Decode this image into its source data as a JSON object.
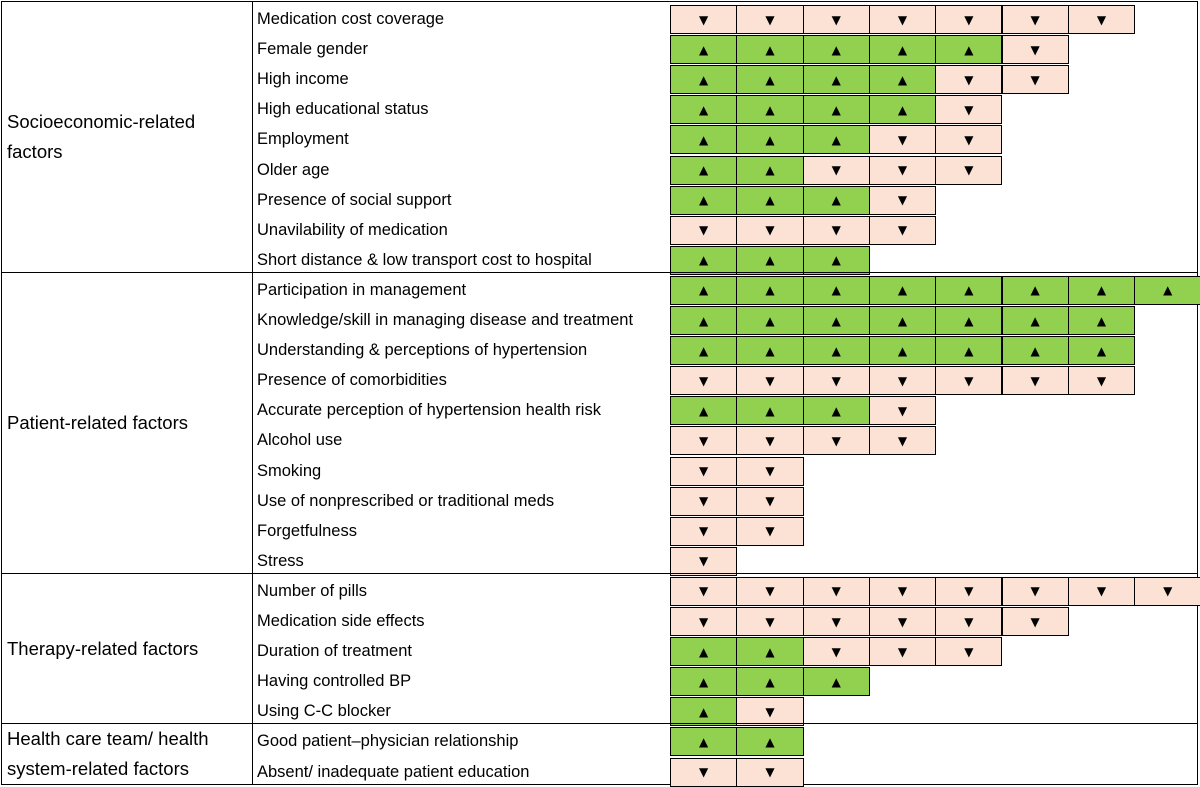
{
  "colors": {
    "increase": "#92d050",
    "decrease": "#fbe2d5"
  },
  "icons": {
    "up": "▲",
    "down": "▼"
  },
  "categories": [
    {
      "label": "Socioeconomic-related factors",
      "factors": [
        {
          "label": "Medication cost coverage",
          "effects": [
            "down",
            "down",
            "down",
            "down",
            "down",
            "down",
            "down"
          ]
        },
        {
          "label": "Female gender",
          "effects": [
            "up",
            "up",
            "up",
            "up",
            "up",
            "down"
          ]
        },
        {
          "label": "High income",
          "effects": [
            "up",
            "up",
            "up",
            "up",
            "down",
            "down"
          ]
        },
        {
          "label": "High educational status",
          "effects": [
            "up",
            "up",
            "up",
            "up",
            "down"
          ]
        },
        {
          "label": "Employment",
          "effects": [
            "up",
            "up",
            "up",
            "down",
            "down"
          ]
        },
        {
          "label": "Older age",
          "effects": [
            "up",
            "up",
            "down",
            "down",
            "down"
          ]
        },
        {
          "label": "Presence of social support",
          "effects": [
            "up",
            "up",
            "up",
            "down"
          ]
        },
        {
          "label": "Unavilability of medication",
          "effects": [
            "down",
            "down",
            "down",
            "down"
          ]
        },
        {
          "label": "Short distance & low transport cost to hospital",
          "effects": [
            "up",
            "up",
            "up"
          ]
        }
      ]
    },
    {
      "label": "Patient-related factors",
      "factors": [
        {
          "label": "Participation in management",
          "effects": [
            "up",
            "up",
            "up",
            "up",
            "up",
            "up",
            "up",
            "up"
          ]
        },
        {
          "label": "Knowledge/skill in managing disease and treatment",
          "effects": [
            "up",
            "up",
            "up",
            "up",
            "up",
            "up",
            "up"
          ]
        },
        {
          "label": "Understanding & perceptions of hypertension",
          "effects": [
            "up",
            "up",
            "up",
            "up",
            "up",
            "up",
            "up"
          ]
        },
        {
          "label": "Presence of comorbidities",
          "effects": [
            "down",
            "down",
            "down",
            "down",
            "down",
            "down",
            "down"
          ]
        },
        {
          "label": "Accurate perception of hypertension health risk",
          "effects": [
            "up",
            "up",
            "up",
            "down"
          ]
        },
        {
          "label": "Alcohol use",
          "effects": [
            "down",
            "down",
            "down",
            "down"
          ]
        },
        {
          "label": "Smoking",
          "effects": [
            "down",
            "down"
          ]
        },
        {
          "label": "Use of nonprescribed or traditional meds",
          "effects": [
            "down",
            "down"
          ]
        },
        {
          "label": "Forgetfulness",
          "effects": [
            "down",
            "down"
          ]
        },
        {
          "label": "Stress",
          "effects": [
            "down"
          ]
        }
      ]
    },
    {
      "label": "Therapy-related factors",
      "factors": [
        {
          "label": "Number of pills",
          "effects": [
            "down",
            "down",
            "down",
            "down",
            "down",
            "down",
            "down",
            "down"
          ]
        },
        {
          "label": "Medication side effects",
          "effects": [
            "down",
            "down",
            "down",
            "down",
            "down",
            "down"
          ]
        },
        {
          "label": "Duration of treatment",
          "effects": [
            "up",
            "up",
            "down",
            "down",
            "down"
          ]
        },
        {
          "label": "Having controlled BP",
          "effects": [
            "up",
            "up",
            "up"
          ]
        },
        {
          "label": "Using C-C blocker",
          "effects": [
            "up",
            "down"
          ]
        }
      ]
    },
    {
      "label": "Health care team/ health system-related factors",
      "factors": [
        {
          "label": "Good patient–physician relationship",
          "effects": [
            "up",
            "up"
          ]
        },
        {
          "label": "Absent/ inadequate patient education",
          "effects": [
            "down",
            "down"
          ]
        }
      ]
    }
  ]
}
